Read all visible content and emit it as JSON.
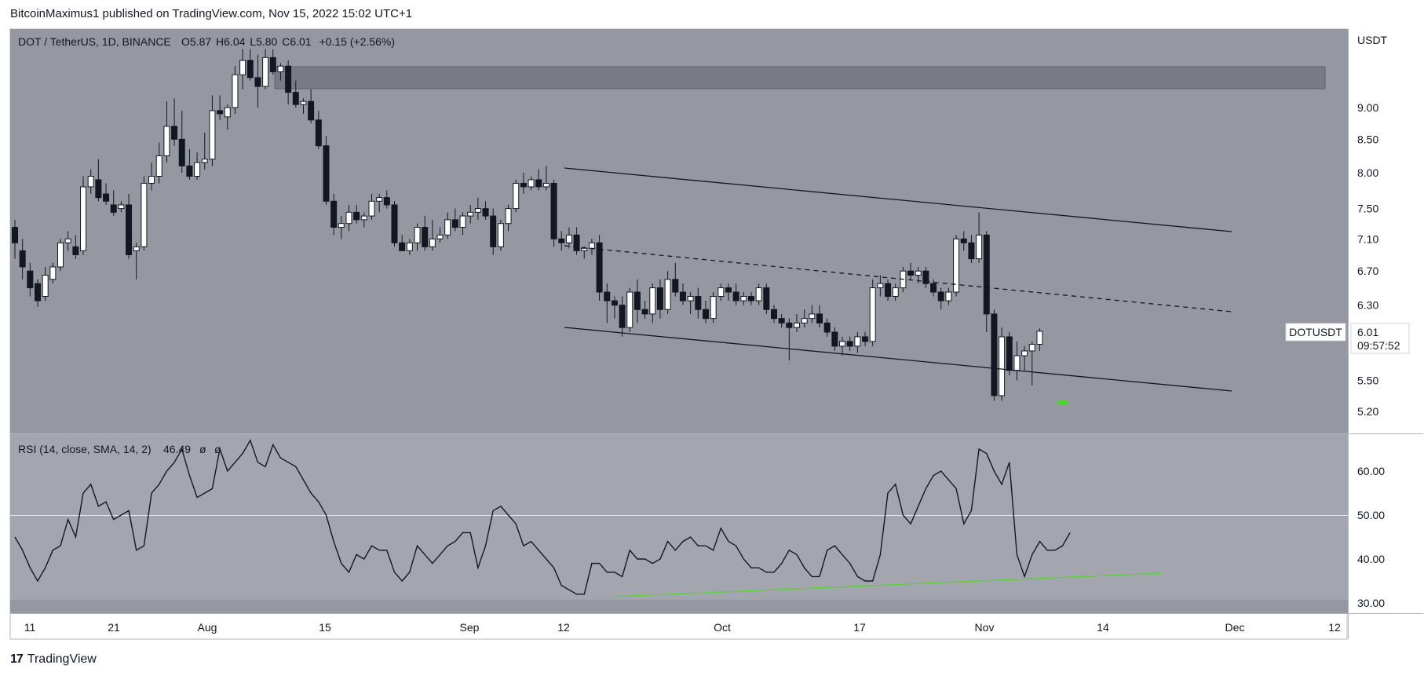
{
  "header": {
    "published": "BitcoinMaximus1 published on TradingView.com, Nov 15, 2022 15:02 UTC+1"
  },
  "legend": {
    "symbol": "DOT / TetherUS, 1D, BINANCE",
    "o_label": "O",
    "o": "5.87",
    "h_label": "H",
    "h": "6.04",
    "l_label": "L",
    "l": "5.80",
    "c_label": "C",
    "c": "6.01",
    "change": "+0.15 (+2.56%)"
  },
  "rsi_legend": {
    "label": "RSI (14, close, SMA, 14, 2)",
    "value": "46.49",
    "na1": "ø",
    "na2": "ø"
  },
  "price_scale": {
    "currency": "USDT",
    "ticks": [
      "9.00",
      "8.50",
      "8.00",
      "7.50",
      "7.10",
      "6.70",
      "6.30",
      "5.50",
      "5.20"
    ]
  },
  "rsi_scale": {
    "ticks": [
      "60.00",
      "50.00",
      "40.00",
      "30.00"
    ]
  },
  "time_axis": {
    "ticks": [
      "11",
      "21",
      "Aug",
      "15",
      "Sep",
      "12",
      "Oct",
      "17",
      "Nov",
      "14",
      "Dec",
      "12"
    ]
  },
  "last_price": {
    "symbol": "DOTUSDT",
    "price": "6.01",
    "countdown": "09:57:52"
  },
  "brand": {
    "logo": "17",
    "name": "TradingView"
  },
  "colors": {
    "panel_bg": "#9598a1",
    "rsi_band": "#a3a6af",
    "candle_up": "#ffffff",
    "candle_down": "#131722",
    "trendline": "#131722",
    "rsi_line": "#131722",
    "rsi_support": "#5bd136",
    "marker": "#46d32c"
  },
  "chart_data": [
    {
      "type": "candlestick",
      "title": "DOT / TetherUS, 1D, BINANCE",
      "ylabel": "USDT",
      "y_scale": "log",
      "ylim": [
        5.1,
        10.0
      ],
      "x_ticks": [
        "11",
        "21",
        "Aug",
        "15",
        "Sep",
        "12",
        "Oct",
        "17",
        "Nov",
        "14",
        "Dec",
        "12"
      ],
      "ohlc": [
        [
          7.25,
          7.35,
          6.85,
          7.05
        ],
        [
          6.95,
          7.1,
          6.6,
          6.75
        ],
        [
          6.7,
          6.8,
          6.4,
          6.5
        ],
        [
          6.55,
          6.6,
          6.28,
          6.35
        ],
        [
          6.4,
          6.75,
          6.35,
          6.65
        ],
        [
          6.6,
          6.8,
          6.55,
          6.75
        ],
        [
          6.75,
          7.1,
          6.7,
          7.05
        ],
        [
          7.05,
          7.2,
          6.95,
          7.1
        ],
        [
          7.0,
          7.15,
          6.85,
          6.9
        ],
        [
          6.95,
          7.95,
          6.9,
          7.8
        ],
        [
          7.8,
          8.05,
          7.7,
          7.95
        ],
        [
          7.9,
          8.2,
          7.6,
          7.65
        ],
        [
          7.7,
          7.85,
          7.55,
          7.6
        ],
        [
          7.55,
          7.75,
          7.4,
          7.45
        ],
        [
          7.5,
          7.6,
          7.45,
          7.55
        ],
        [
          7.55,
          7.7,
          6.85,
          6.9
        ],
        [
          6.95,
          7.05,
          6.6,
          7.0
        ],
        [
          7.0,
          7.95,
          6.95,
          7.85
        ],
        [
          7.85,
          8.15,
          7.75,
          7.95
        ],
        [
          7.95,
          8.45,
          7.85,
          8.25
        ],
        [
          8.25,
          9.1,
          8.15,
          8.7
        ],
        [
          8.7,
          9.15,
          8.4,
          8.5
        ],
        [
          8.5,
          8.95,
          8.0,
          8.1
        ],
        [
          8.1,
          8.35,
          7.9,
          7.95
        ],
        [
          7.95,
          8.3,
          7.9,
          8.15
        ],
        [
          8.15,
          8.6,
          8.05,
          8.2
        ],
        [
          8.2,
          9.2,
          8.1,
          8.95
        ],
        [
          8.95,
          9.2,
          8.8,
          8.9
        ],
        [
          8.85,
          9.05,
          8.65,
          9.0
        ],
        [
          9.0,
          9.7,
          8.9,
          9.55
        ],
        [
          9.55,
          10.0,
          9.3,
          9.8
        ],
        [
          9.8,
          10.0,
          9.45,
          9.5
        ],
        [
          9.5,
          9.9,
          9.0,
          9.35
        ],
        [
          9.35,
          10.0,
          9.3,
          9.85
        ],
        [
          9.85,
          10.0,
          9.55,
          9.6
        ],
        [
          9.6,
          9.75,
          9.45,
          9.7
        ],
        [
          9.7,
          9.8,
          9.05,
          9.25
        ],
        [
          9.25,
          9.45,
          9.0,
          9.05
        ],
        [
          9.05,
          9.15,
          8.9,
          9.1
        ],
        [
          9.1,
          9.3,
          8.75,
          8.8
        ],
        [
          8.8,
          8.95,
          8.35,
          8.4
        ],
        [
          8.4,
          8.55,
          7.55,
          7.6
        ],
        [
          7.6,
          7.7,
          7.15,
          7.25
        ],
        [
          7.25,
          7.4,
          7.1,
          7.3
        ],
        [
          7.3,
          7.55,
          7.2,
          7.45
        ],
        [
          7.45,
          7.55,
          7.3,
          7.35
        ],
        [
          7.35,
          7.45,
          7.25,
          7.4
        ],
        [
          7.4,
          7.7,
          7.35,
          7.6
        ],
        [
          7.6,
          7.7,
          7.45,
          7.65
        ],
        [
          7.65,
          7.75,
          7.5,
          7.55
        ],
        [
          7.55,
          7.6,
          7.0,
          7.05
        ],
        [
          7.05,
          7.15,
          6.95,
          6.95
        ],
        [
          6.95,
          7.1,
          6.9,
          7.05
        ],
        [
          7.05,
          7.3,
          6.95,
          7.25
        ],
        [
          7.25,
          7.4,
          6.95,
          7.0
        ],
        [
          7.0,
          7.35,
          6.95,
          7.1
        ],
        [
          7.1,
          7.25,
          7.05,
          7.15
        ],
        [
          7.15,
          7.45,
          7.1,
          7.35
        ],
        [
          7.35,
          7.5,
          7.2,
          7.25
        ],
        [
          7.25,
          7.45,
          7.15,
          7.4
        ],
        [
          7.4,
          7.55,
          7.3,
          7.45
        ],
        [
          7.45,
          7.65,
          7.35,
          7.5
        ],
        [
          7.5,
          7.6,
          7.35,
          7.4
        ],
        [
          7.4,
          7.5,
          6.9,
          7.0
        ],
        [
          7.0,
          7.35,
          6.95,
          7.3
        ],
        [
          7.3,
          7.55,
          7.2,
          7.5
        ],
        [
          7.5,
          7.9,
          7.45,
          7.85
        ],
        [
          7.85,
          8.0,
          7.7,
          7.8
        ],
        [
          7.8,
          7.95,
          7.75,
          7.9
        ],
        [
          7.9,
          8.05,
          7.75,
          7.8
        ],
        [
          7.8,
          8.1,
          7.75,
          7.85
        ],
        [
          7.85,
          7.9,
          7.0,
          7.1
        ],
        [
          7.1,
          7.2,
          6.95,
          7.05
        ],
        [
          7.05,
          7.25,
          6.98,
          7.15
        ],
        [
          7.15,
          7.25,
          6.9,
          6.95
        ],
        [
          6.95,
          7.0,
          6.85,
          6.98
        ],
        [
          6.98,
          7.1,
          6.9,
          7.05
        ],
        [
          7.05,
          7.15,
          6.35,
          6.45
        ],
        [
          6.45,
          6.55,
          6.1,
          6.35
        ],
        [
          6.35,
          6.4,
          6.15,
          6.3
        ],
        [
          6.3,
          6.4,
          5.95,
          6.05
        ],
        [
          6.05,
          6.5,
          6.0,
          6.45
        ],
        [
          6.45,
          6.6,
          6.1,
          6.25
        ],
        [
          6.25,
          6.35,
          6.15,
          6.2
        ],
        [
          6.2,
          6.55,
          6.1,
          6.5
        ],
        [
          6.5,
          6.6,
          6.15,
          6.25
        ],
        [
          6.25,
          6.7,
          6.2,
          6.6
        ],
        [
          6.6,
          6.8,
          6.4,
          6.45
        ],
        [
          6.45,
          6.55,
          6.3,
          6.35
        ],
        [
          6.35,
          6.45,
          6.2,
          6.4
        ],
        [
          6.4,
          6.5,
          6.15,
          6.25
        ],
        [
          6.25,
          6.35,
          6.1,
          6.15
        ],
        [
          6.15,
          6.45,
          6.1,
          6.4
        ],
        [
          6.4,
          6.55,
          6.35,
          6.5
        ],
        [
          6.5,
          6.55,
          6.35,
          6.45
        ],
        [
          6.45,
          6.55,
          6.3,
          6.35
        ],
        [
          6.35,
          6.45,
          6.3,
          6.4
        ],
        [
          6.4,
          6.45,
          6.3,
          6.35
        ],
        [
          6.35,
          6.55,
          6.3,
          6.5
        ],
        [
          6.5,
          6.55,
          6.2,
          6.25
        ],
        [
          6.25,
          6.3,
          6.1,
          6.15
        ],
        [
          6.15,
          6.2,
          6.05,
          6.1
        ],
        [
          6.1,
          6.15,
          5.7,
          6.05
        ],
        [
          6.05,
          6.2,
          6.0,
          6.1
        ],
        [
          6.1,
          6.25,
          6.05,
          6.15
        ],
        [
          6.15,
          6.3,
          6.1,
          6.2
        ],
        [
          6.2,
          6.3,
          6.05,
          6.1
        ],
        [
          6.1,
          6.15,
          5.95,
          6.0
        ],
        [
          6.0,
          6.05,
          5.8,
          5.85
        ],
        [
          5.85,
          5.95,
          5.75,
          5.9
        ],
        [
          5.9,
          5.95,
          5.8,
          5.85
        ],
        [
          5.85,
          6.0,
          5.78,
          5.95
        ],
        [
          5.95,
          6.0,
          5.85,
          5.9
        ],
        [
          5.9,
          6.6,
          5.85,
          6.5
        ],
        [
          6.5,
          6.65,
          6.4,
          6.55
        ],
        [
          6.55,
          6.6,
          6.35,
          6.4
        ],
        [
          6.4,
          6.55,
          6.35,
          6.5
        ],
        [
          6.5,
          6.75,
          6.45,
          6.7
        ],
        [
          6.7,
          6.8,
          6.6,
          6.65
        ],
        [
          6.65,
          6.75,
          6.55,
          6.7
        ],
        [
          6.7,
          6.75,
          6.5,
          6.55
        ],
        [
          6.55,
          6.6,
          6.4,
          6.45
        ],
        [
          6.45,
          6.5,
          6.25,
          6.35
        ],
        [
          6.35,
          6.5,
          6.3,
          6.45
        ],
        [
          6.45,
          7.15,
          6.4,
          7.1
        ],
        [
          7.1,
          7.2,
          6.95,
          7.05
        ],
        [
          7.05,
          7.15,
          6.8,
          6.85
        ],
        [
          6.85,
          7.45,
          6.8,
          7.15
        ],
        [
          7.15,
          7.2,
          6.0,
          6.2
        ],
        [
          6.2,
          6.25,
          5.3,
          5.35
        ],
        [
          5.35,
          6.05,
          5.3,
          5.95
        ],
        [
          5.95,
          6.0,
          5.55,
          5.6
        ],
        [
          5.6,
          5.9,
          5.5,
          5.75
        ],
        [
          5.75,
          5.85,
          5.6,
          5.8
        ],
        [
          5.8,
          5.9,
          5.45,
          5.87
        ],
        [
          5.87,
          6.04,
          5.8,
          6.01
        ]
      ],
      "annotations": [
        {
          "label": "resistance zone",
          "price_low": 9.55,
          "price_high": 9.9
        },
        {
          "label": "channel top",
          "from": [
            73,
            8.1
          ],
          "to": [
            163,
            7.2
          ]
        },
        {
          "label": "channel midline (dashed)",
          "from": [
            73,
            7.05
          ],
          "to": [
            163,
            6.25
          ]
        },
        {
          "label": "channel bottom",
          "from": [
            73,
            6.2
          ],
          "to": [
            163,
            5.45
          ]
        },
        {
          "label": "green bottom marker",
          "at": [
            136,
            5.28
          ]
        }
      ]
    },
    {
      "type": "line",
      "title": "RSI (14, close, SMA, 14, 2)",
      "ylim": [
        28,
        69
      ],
      "reference_line": 50,
      "series": [
        {
          "values": [
            45,
            42,
            38,
            35,
            38,
            42,
            43,
            49,
            45,
            55,
            57,
            52,
            53,
            49,
            50,
            51,
            42,
            43,
            55,
            57,
            60,
            62,
            65,
            59,
            54,
            55,
            56,
            65,
            60,
            62,
            64,
            67,
            62,
            61,
            66,
            63,
            62,
            61,
            58,
            55,
            53,
            50,
            44,
            39,
            37,
            41,
            40,
            43,
            42,
            42,
            37,
            35,
            37,
            43,
            41,
            39,
            41,
            43,
            44,
            46,
            46,
            38,
            43,
            51,
            52,
            50,
            48,
            43,
            44,
            42,
            40,
            38,
            34,
            33,
            32,
            32,
            39,
            39,
            37,
            37,
            36,
            42,
            40,
            40,
            39,
            40,
            44,
            42,
            44,
            45,
            43,
            43,
            42,
            47,
            44,
            43,
            40,
            38,
            38,
            37,
            37,
            39,
            42,
            41,
            38,
            36,
            36,
            42,
            43,
            41,
            39,
            36,
            35,
            35,
            41,
            55,
            57,
            50,
            48,
            52,
            56,
            59,
            60,
            58,
            56,
            48,
            51,
            65,
            64,
            60,
            57,
            62,
            41,
            36,
            41,
            44,
            42,
            42,
            43,
            46
          ]
        },
        {
          "name": "support",
          "from": [
            79,
            31.5
          ],
          "to": [
            151,
            36.5
          ]
        }
      ]
    }
  ]
}
